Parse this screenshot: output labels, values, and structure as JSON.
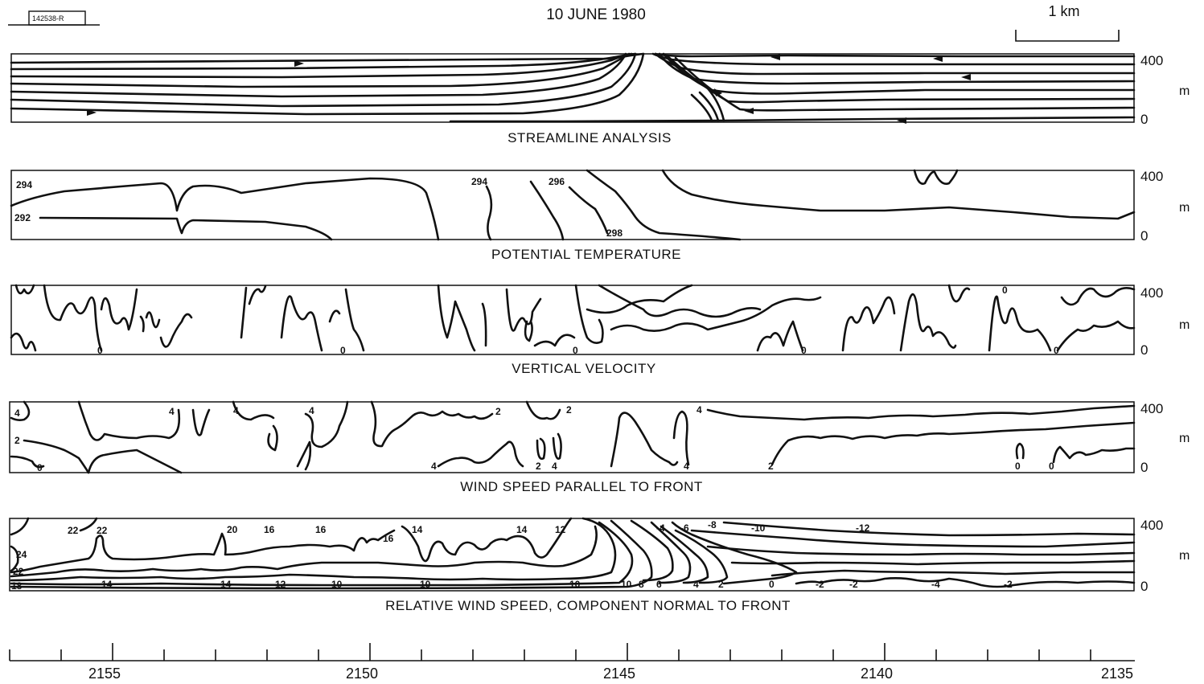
{
  "header": {
    "tag": "142538-R",
    "date": "10 JUNE 1980",
    "scale_label": "1 km"
  },
  "panels": [
    {
      "title": "STREAMLINE ANALYSIS",
      "y_top": "400",
      "y_bottom": "0",
      "unit": "m"
    },
    {
      "title": "POTENTIAL TEMPERATURE",
      "y_top": "400",
      "y_bottom": "0",
      "unit": "m",
      "labels": [
        "294",
        "292",
        "294",
        "296",
        "298"
      ]
    },
    {
      "title": "VERTICAL VELOCITY",
      "y_top": "400",
      "y_bottom": "0",
      "unit": "m",
      "labels": [
        "0",
        "0",
        "0",
        "0",
        "0",
        "0"
      ]
    },
    {
      "title": "WIND SPEED PARALLEL TO FRONT",
      "y_top": "400",
      "y_bottom": "0",
      "unit": "m",
      "labels": [
        "4",
        "2",
        "0",
        "4",
        "4",
        "4",
        "2",
        "4",
        "2",
        "2",
        "4",
        "4",
        "4",
        "2",
        "0",
        "0"
      ]
    },
    {
      "title": "RELATIVE WIND SPEED, COMPONENT NORMAL TO FRONT",
      "y_top": "400",
      "y_bottom": "0",
      "unit": "m",
      "labels": [
        "22",
        "22",
        "24",
        "22",
        "18",
        "20",
        "16",
        "16",
        "16",
        "14",
        "14",
        "12",
        "14",
        "14",
        "12",
        "10",
        "10",
        "10",
        "10",
        "8",
        "6",
        "4",
        "2",
        "0",
        "-2",
        "-2",
        "-4",
        "-2",
        "-4",
        "-6",
        "-8",
        "-10",
        "-12"
      ]
    }
  ],
  "x_axis": {
    "ticks": [
      "2155",
      "2150",
      "2145",
      "2140",
      "2135"
    ]
  }
}
